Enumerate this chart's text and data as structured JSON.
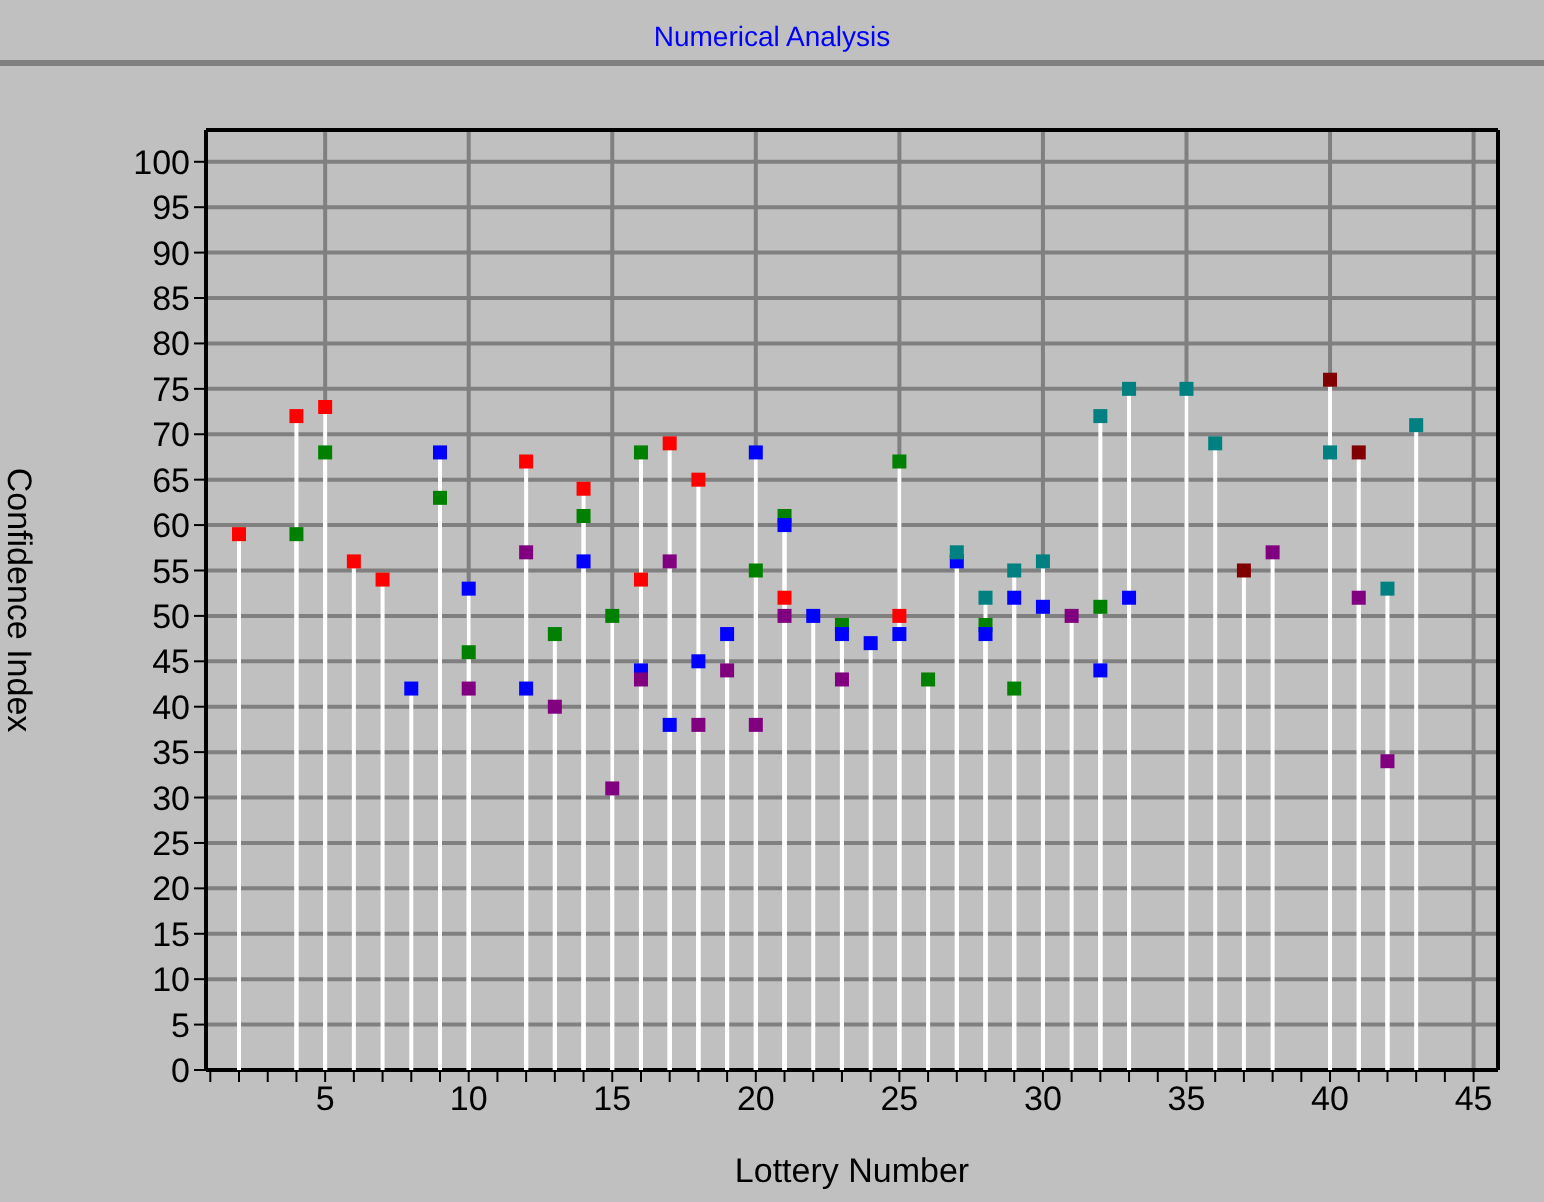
{
  "chart_data": {
    "type": "lollipop",
    "title": "Numerical Analysis",
    "xlabel": "Lottery Number",
    "ylabel": "Confidence Index",
    "xlim": [
      0.85,
      45.85
    ],
    "xticks": [
      {
        "value": 1,
        "label": null
      },
      {
        "value": 2,
        "label": null
      },
      {
        "value": 3,
        "label": null
      },
      {
        "value": 4,
        "label": null
      },
      5,
      {
        "value": 6,
        "label": null
      },
      {
        "value": 7,
        "label": null
      },
      {
        "value": 8,
        "label": null
      },
      {
        "value": 9,
        "label": null
      },
      10,
      {
        "value": 11,
        "label": null
      },
      {
        "value": 12,
        "label": null
      },
      {
        "value": 13,
        "label": null
      },
      {
        "value": 14,
        "label": null
      },
      15,
      {
        "value": 16,
        "label": null
      },
      {
        "value": 17,
        "label": null
      },
      {
        "value": 18,
        "label": null
      },
      {
        "value": 19,
        "label": null
      },
      20,
      {
        "value": 21,
        "label": null
      },
      {
        "value": 22,
        "label": null
      },
      {
        "value": 23,
        "label": null
      },
      {
        "value": 24,
        "label": null
      },
      25,
      {
        "value": 26,
        "label": null
      },
      {
        "value": 27,
        "label": null
      },
      {
        "value": 28,
        "label": null
      },
      {
        "value": 29,
        "label": null
      },
      30,
      {
        "value": 31,
        "label": null
      },
      {
        "value": 32,
        "label": null
      },
      {
        "value": 33,
        "label": null
      },
      {
        "value": 34,
        "label": null
      },
      35,
      {
        "value": 36,
        "label": null
      },
      {
        "value": 37,
        "label": null
      },
      {
        "value": 38,
        "label": null
      },
      {
        "value": 39,
        "label": null
      },
      40,
      {
        "value": 41,
        "label": null
      },
      {
        "value": 42,
        "label": null
      },
      {
        "value": 43,
        "label": null
      },
      {
        "value": 44,
        "label": null
      },
      45
    ],
    "ylim": [
      0,
      103.5
    ],
    "yticks": [
      0,
      5,
      10,
      15,
      20,
      25,
      30,
      35,
      40,
      45,
      50,
      55,
      60,
      65,
      70,
      75,
      80,
      85,
      90,
      95,
      100
    ],
    "grid": true,
    "marker": "square",
    "series": [
      {
        "color": "#ff0000",
        "x": [
          2,
          4,
          5,
          6,
          7,
          12,
          14,
          16,
          17,
          18,
          21,
          25
        ],
        "values": [
          59,
          72,
          73,
          56,
          54,
          67,
          64,
          54,
          69,
          65,
          52,
          50
        ]
      },
      {
        "color": "#008000",
        "x": [
          4,
          5,
          9,
          10,
          13,
          14,
          15,
          16,
          20,
          21,
          23,
          25,
          26,
          28,
          29,
          32
        ],
        "values": [
          59,
          68,
          63,
          46,
          48,
          61,
          50,
          68,
          55,
          61,
          49,
          67,
          43,
          49,
          42,
          51
        ]
      },
      {
        "color": "#0000ff",
        "x": [
          8,
          9,
          10,
          12,
          14,
          16,
          17,
          18,
          19,
          20,
          21,
          22,
          23,
          24,
          25,
          27,
          28,
          29,
          30,
          32,
          33
        ],
        "values": [
          42,
          68,
          53,
          42,
          56,
          44,
          38,
          45,
          48,
          68,
          60,
          50,
          48,
          47,
          48,
          56,
          48,
          52,
          51,
          44,
          52
        ]
      },
      {
        "color": "#800080",
        "x": [
          10,
          12,
          13,
          15,
          16,
          17,
          18,
          19,
          20,
          21,
          23,
          31,
          38,
          41,
          42
        ],
        "values": [
          42,
          57,
          40,
          31,
          43,
          56,
          38,
          44,
          38,
          50,
          43,
          50,
          57,
          52,
          34
        ]
      },
      {
        "color": "#008080",
        "x": [
          27,
          28,
          29,
          30,
          32,
          33,
          35,
          36,
          40,
          42,
          43
        ],
        "values": [
          57,
          52,
          55,
          56,
          72,
          75,
          75,
          69,
          68,
          53,
          71
        ]
      },
      {
        "color": "#800000",
        "x": [
          37,
          40,
          41
        ],
        "values": [
          55,
          76,
          68
        ]
      }
    ]
  }
}
